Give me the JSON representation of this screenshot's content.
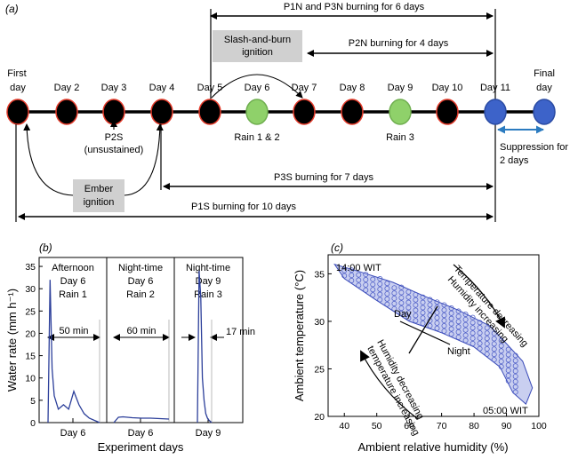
{
  "panel_a": {
    "label": "(a)",
    "days": [
      "First day",
      "Day 2",
      "Day 3",
      "Day 4",
      "Day 5",
      "Day 6",
      "Day 7",
      "Day 8",
      "Day 9",
      "Day 10",
      "Day 11",
      "Final day"
    ],
    "day_colors": [
      "black",
      "black",
      "black",
      "black",
      "black",
      "green",
      "black",
      "black",
      "green",
      "black",
      "blue",
      "blue"
    ],
    "spans": {
      "p1n_p3n": "P1N and P3N burning for 6 days",
      "p2n": "P2N burning for 4 days",
      "p3s": "P3S burning for 7 days",
      "p1s": "P1S burning for 10 days",
      "suppression": "Suppression for 2 days"
    },
    "boxes": {
      "slash_burn": "Slash-and-burn ignition",
      "ember": "Ember ignition"
    },
    "annotations": {
      "p2s": "P2S (unsustained)",
      "rain12": "Rain 1 & 2",
      "rain3": "Rain 3"
    },
    "colors": {
      "black_node": "#000000",
      "node_outline": "#e23a2a",
      "green_node": "#8fd16a",
      "blue_node": "#3d63c9",
      "box_fill": "#d0d0d0",
      "suppression_arrow": "#2b7bc0"
    }
  },
  "panel_b": {
    "label": "(b)",
    "ylabel": "Water rate (mm h⁻¹)",
    "xlabel": "Experiment days",
    "y_ticks": [
      "0",
      "5",
      "10",
      "15",
      "20",
      "25",
      "30",
      "35"
    ],
    "sections": [
      {
        "title": "Afternoon",
        "day": "Day 6",
        "rain": "Rain 1",
        "duration": "50 min",
        "x_label": "Day 6"
      },
      {
        "title": "Night-time",
        "day": "Day 6",
        "rain": "Rain 2",
        "duration": "60 min",
        "x_label": "Day 6"
      },
      {
        "title": "Night-time",
        "day": "Day 9",
        "rain": "Rain 3",
        "duration": "17 min",
        "x_label": "Day 9"
      }
    ]
  },
  "panel_c": {
    "label": "(c)",
    "xlabel": "Ambient relative humidity (%)",
    "ylabel": "Ambient temperature (°C)",
    "x_ticks": [
      "40",
      "50",
      "60",
      "70",
      "80",
      "90",
      "100"
    ],
    "y_ticks": [
      "20",
      "25",
      "30",
      "35"
    ],
    "start_label": "14:00 WIT",
    "end_label": "05:00 WIT",
    "day_label": "Day",
    "night_label": "Night",
    "arrow_top_text": [
      "Temperature decreasing",
      "Humidity increasing"
    ],
    "arrow_bottom_text": [
      "Humidity decreasing",
      "temperature increasing"
    ]
  },
  "chart_data": [
    {
      "type": "line",
      "xlabel": "Experiment days",
      "ylabel": "Water rate (mm h⁻¹)",
      "ylim": [
        0,
        35
      ],
      "series": [
        {
          "name": "Rain 1",
          "x_min": [
            0,
            2,
            4,
            6,
            10,
            15,
            20,
            25,
            30,
            35,
            40,
            45,
            50
          ],
          "values": [
            0,
            32,
            12,
            6,
            3,
            4,
            3,
            7,
            4,
            2,
            1,
            0.5,
            0
          ]
        },
        {
          "name": "Rain 2",
          "x_min": [
            0,
            5,
            10,
            20,
            30,
            40,
            50,
            60
          ],
          "values": [
            0,
            1.2,
            1.3,
            1.1,
            1.0,
            1.0,
            0.9,
            0.8
          ]
        },
        {
          "name": "Rain 3",
          "x_min": [
            0,
            2,
            4,
            6,
            8,
            10,
            12,
            14,
            17
          ],
          "values": [
            0,
            34,
            28,
            10,
            5,
            2,
            1,
            0.5,
            0
          ]
        }
      ]
    },
    {
      "type": "scatter",
      "xlabel": "Ambient relative humidity (%)",
      "ylabel": "Ambient temperature (°C)",
      "xlim": [
        35,
        100
      ],
      "ylim": [
        20,
        37
      ],
      "band_upper": [
        [
          37,
          36
        ],
        [
          45,
          35.2
        ],
        [
          55,
          34.1
        ],
        [
          65,
          32.6
        ],
        [
          75,
          31.2
        ],
        [
          85,
          29.5
        ],
        [
          95,
          25.8
        ],
        [
          98,
          23
        ]
      ],
      "band_lower": [
        [
          40,
          34.5
        ],
        [
          50,
          32.2
        ],
        [
          60,
          30
        ],
        [
          70,
          28.8
        ],
        [
          80,
          27.3
        ],
        [
          88,
          25.2
        ],
        [
          92,
          22.5
        ],
        [
          96,
          21.3
        ]
      ]
    }
  ]
}
